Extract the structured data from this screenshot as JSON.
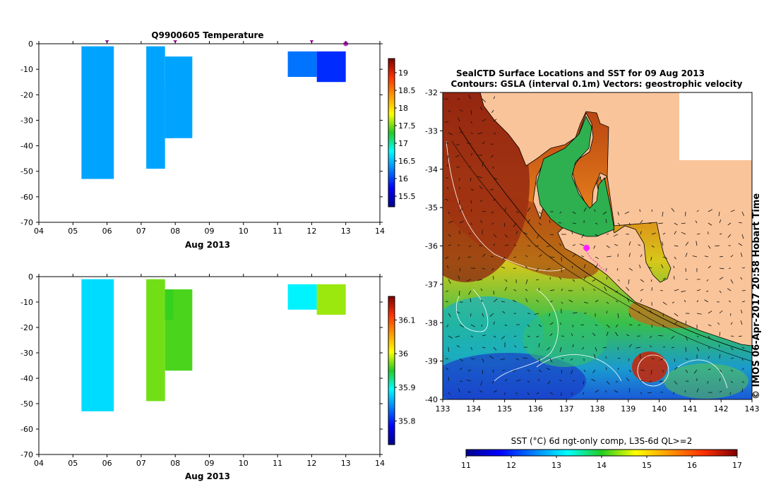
{
  "chart_data": [
    {
      "type": "bar",
      "title": "Q9900605  Temperature",
      "xlabel": "Aug 2013",
      "x_ticks": [
        "04",
        "05",
        "06",
        "07",
        "08",
        "09",
        "10",
        "11",
        "12",
        "13",
        "14"
      ],
      "xlim": [
        4,
        14
      ],
      "ylim": [
        -70,
        0
      ],
      "y_ticks": [
        0,
        -10,
        -20,
        -30,
        -40,
        -50,
        -60,
        -70
      ],
      "y_tick_labels": [
        "0",
        "-10",
        "-20",
        "-30",
        "-40",
        "-50",
        "-60",
        "-70"
      ],
      "profile_markers": [
        6,
        8,
        12,
        13
      ],
      "current_profile": 13,
      "cells": [
        {
          "x0": 5.25,
          "x1": 6.2,
          "top": -1,
          "bottom": -53,
          "value": 16.4
        },
        {
          "x0": 7.15,
          "x1": 7.7,
          "top": -1,
          "bottom": -49,
          "value": 16.4
        },
        {
          "x0": 7.7,
          "x1": 8.5,
          "top": -5,
          "bottom": -37,
          "value": 16.4
        },
        {
          "x0": 7.7,
          "x1": 7.95,
          "top": -17,
          "bottom": -37,
          "value": 16.4
        },
        {
          "x0": 11.3,
          "x1": 12.15,
          "top": -3,
          "bottom": -13,
          "value": 16.2
        },
        {
          "x0": 12.15,
          "x1": 13.0,
          "top": -3,
          "bottom": -15,
          "value": 15.9
        }
      ],
      "colorbar": {
        "min": 15.2,
        "max": 19.4,
        "ticks": [
          15.5,
          16,
          16.5,
          17,
          17.5,
          18,
          18.5,
          19
        ],
        "tick_labels": [
          "15.5",
          "16",
          "16.5",
          "17",
          "17.5",
          "18",
          "18.5",
          "19"
        ]
      }
    },
    {
      "type": "bar",
      "title": "",
      "xlabel": "Aug 2013",
      "x_ticks": [
        "04",
        "05",
        "06",
        "07",
        "08",
        "09",
        "10",
        "11",
        "12",
        "13",
        "14"
      ],
      "xlim": [
        4,
        14
      ],
      "ylim": [
        -70,
        0
      ],
      "y_ticks": [
        0,
        -10,
        -20,
        -30,
        -40,
        -50,
        -60,
        -70
      ],
      "y_tick_labels": [
        "0",
        "-10",
        "-20",
        "-30",
        "-40",
        "-50",
        "-60",
        "-70"
      ],
      "cells": [
        {
          "x0": 5.25,
          "x1": 6.2,
          "top": -1,
          "bottom": -53,
          "value": 35.88
        },
        {
          "x0": 7.15,
          "x1": 7.7,
          "top": -1,
          "bottom": -49,
          "value": 35.97
        },
        {
          "x0": 7.7,
          "x1": 8.5,
          "top": -5,
          "bottom": -37,
          "value": 35.96
        },
        {
          "x0": 7.7,
          "x1": 7.95,
          "top": -5,
          "bottom": -17,
          "value": 35.955
        },
        {
          "x0": 11.3,
          "x1": 12.15,
          "top": -3,
          "bottom": -13,
          "value": 35.89
        },
        {
          "x0": 12.15,
          "x1": 13.0,
          "top": -3,
          "bottom": -15,
          "value": 35.98
        }
      ],
      "colorbar": {
        "min": 35.73,
        "max": 36.17,
        "ticks": [
          35.8,
          35.9,
          36,
          36.1
        ],
        "tick_labels": [
          "35.8",
          "35.9",
          "36",
          "36.1"
        ]
      }
    },
    {
      "type": "heatmap",
      "title": "SealCTD Surface Locations and SST for 09 Aug 2013",
      "subtitle": "Contours: GSLA (interval 0.1m) Vectors: geostrophic velocity",
      "xlim": [
        133,
        143
      ],
      "ylim": [
        -40,
        -32
      ],
      "x_ticks": [
        133,
        134,
        135,
        136,
        137,
        138,
        139,
        140,
        141,
        142,
        143
      ],
      "y_ticks": [
        -32,
        -33,
        -34,
        -35,
        -36,
        -37,
        -38,
        -39,
        -40
      ],
      "y_tick_labels": [
        "-32",
        "-33",
        "-34",
        "-35",
        "-36",
        "-37",
        "-38",
        "-39",
        "-40"
      ],
      "seal_position": [
        137.65,
        -36.05
      ],
      "colorbar": {
        "label": "SST (°C) 6d ngt-only comp, L3S-6d QL>=2",
        "min": 11,
        "max": 17,
        "ticks": [
          11,
          12,
          13,
          14,
          15,
          16,
          17
        ],
        "tick_labels": [
          "11",
          "12",
          "13",
          "14",
          "15",
          "16",
          "17"
        ]
      },
      "credit": "© IMOS 06-Apr-2017 20:58 Hobart Time"
    }
  ]
}
